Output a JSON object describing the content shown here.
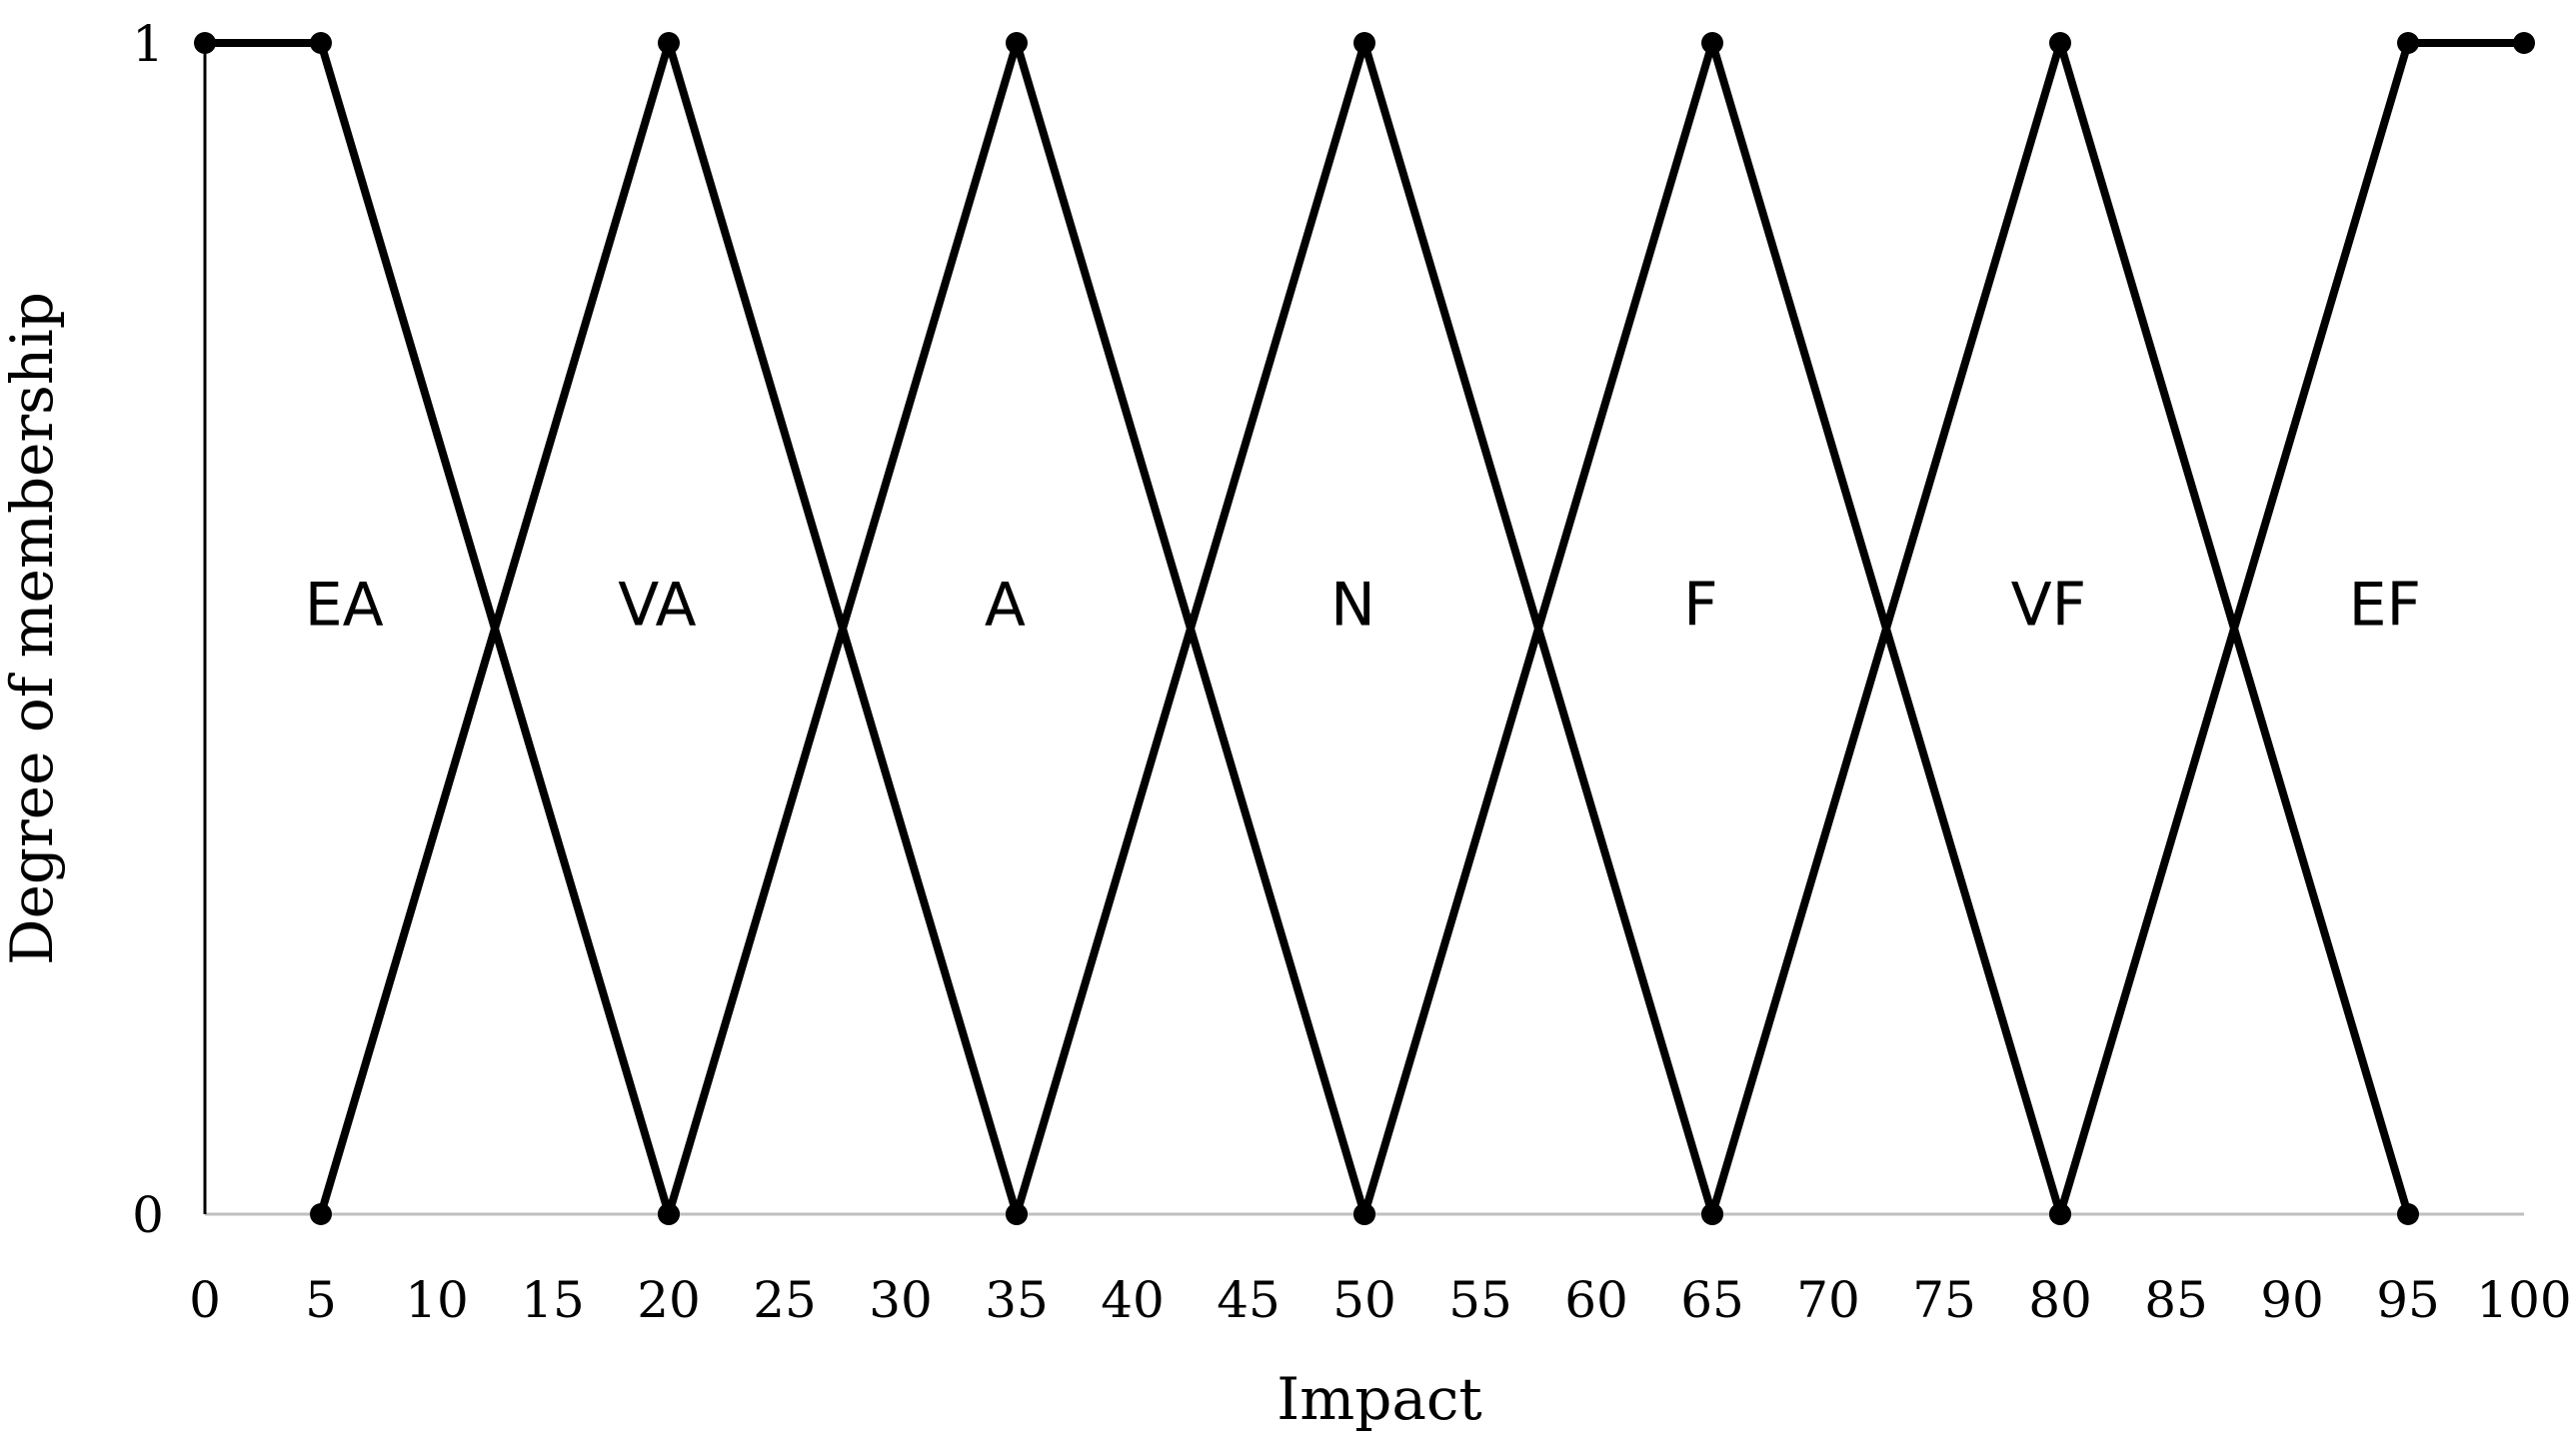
{
  "chart_data": {
    "type": "line",
    "title": "",
    "xlabel": "Impact",
    "ylabel": "Degree of membership",
    "xlim": [
      0,
      100
    ],
    "ylim": [
      0,
      1
    ],
    "x_ticks": [
      0,
      5,
      10,
      15,
      20,
      25,
      30,
      35,
      40,
      45,
      50,
      55,
      60,
      65,
      70,
      75,
      80,
      85,
      90,
      95,
      100
    ],
    "y_ticks": [
      0,
      1
    ],
    "grid": false,
    "legend": "none",
    "line_color": "#000000",
    "axis_color": "#bfbfbf",
    "series": [
      {
        "label": "EA",
        "points": [
          [
            0,
            1
          ],
          [
            5,
            1
          ],
          [
            20,
            0
          ]
        ]
      },
      {
        "label": "VA",
        "points": [
          [
            5,
            0
          ],
          [
            20,
            1
          ],
          [
            35,
            0
          ]
        ]
      },
      {
        "label": "A",
        "points": [
          [
            20,
            0
          ],
          [
            35,
            1
          ],
          [
            50,
            0
          ]
        ]
      },
      {
        "label": "N",
        "points": [
          [
            35,
            0
          ],
          [
            50,
            1
          ],
          [
            65,
            0
          ]
        ]
      },
      {
        "label": "F",
        "points": [
          [
            50,
            0
          ],
          [
            65,
            1
          ],
          [
            80,
            0
          ]
        ]
      },
      {
        "label": "VF",
        "points": [
          [
            65,
            0
          ],
          [
            80,
            1
          ],
          [
            95,
            0
          ]
        ]
      },
      {
        "label": "EF",
        "points": [
          [
            80,
            0
          ],
          [
            95,
            1
          ],
          [
            100,
            1
          ]
        ]
      }
    ],
    "set_labels": [
      {
        "text": "EA",
        "x": 6,
        "y": 0.52
      },
      {
        "text": "VA",
        "x": 19.5,
        "y": 0.52
      },
      {
        "text": "A",
        "x": 34.5,
        "y": 0.52
      },
      {
        "text": "N",
        "x": 49.5,
        "y": 0.52
      },
      {
        "text": "F",
        "x": 64.5,
        "y": 0.52
      },
      {
        "text": "VF",
        "x": 79.5,
        "y": 0.52
      },
      {
        "text": "EF",
        "x": 94,
        "y": 0.52
      }
    ]
  }
}
